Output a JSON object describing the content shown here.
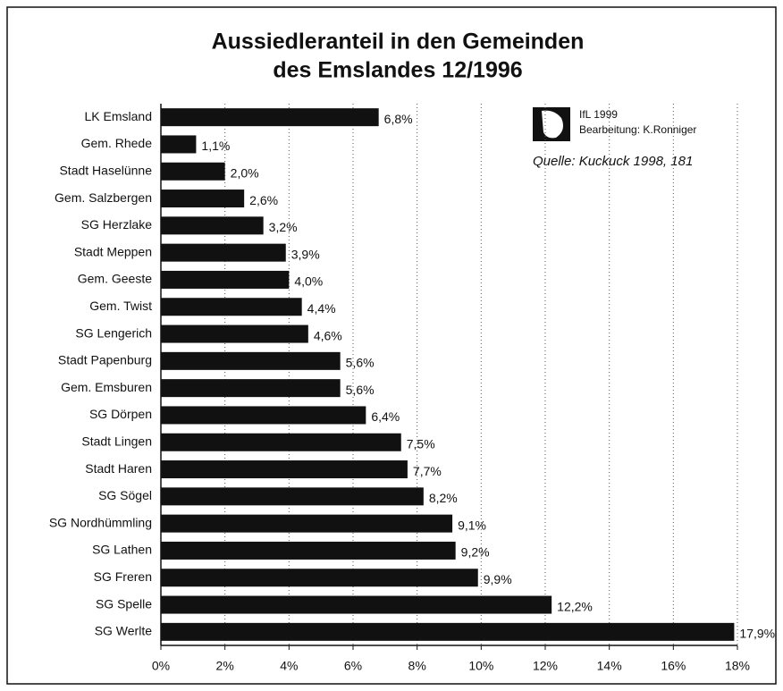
{
  "chart_data": {
    "type": "bar",
    "orientation": "horizontal",
    "title": [
      "Aussiedleranteil in den Gemeinden",
      "des Emslandes 12/1996"
    ],
    "annotations": [
      "IfL 1999",
      "Bearbeitung: K.Ronniger",
      "Quelle: Kuckuck 1998, 181"
    ],
    "categories": [
      "LK Emsland",
      "Gem. Rhede",
      "Stadt Haselünne",
      "Gem. Salzbergen",
      "SG Herzlake",
      "Stadt Meppen",
      "Gem. Geeste",
      "Gem. Twist",
      "SG Lengerich",
      "Stadt Papenburg",
      "Gem. Emsburen",
      "SG Dörpen",
      "Stadt Lingen",
      "Stadt Haren",
      "SG Sögel",
      "SG Nordhümmling",
      "SG Lathen",
      "SG Freren",
      "SG Spelle",
      "SG Werlte"
    ],
    "values": [
      6.8,
      1.1,
      2.0,
      2.6,
      3.2,
      3.9,
      4.0,
      4.4,
      4.6,
      5.6,
      5.6,
      6.4,
      7.5,
      7.7,
      8.2,
      9.1,
      9.2,
      9.9,
      12.2,
      17.9
    ],
    "value_labels": [
      "6,8%",
      "1,1%",
      "2,0%",
      "2,6%",
      "3,2%",
      "3,9%",
      "4,0%",
      "4,4%",
      "4,6%",
      "5,6%",
      "5,6%",
      "6,4%",
      "7,5%",
      "7,7%",
      "8,2%",
      "9,1%",
      "9,2%",
      "9,9%",
      "12,2%",
      "17,9%"
    ],
    "color": "#111111",
    "xlim": [
      0,
      18
    ],
    "xticks": [
      {
        "value": 0,
        "label": "0%"
      },
      {
        "value": 2,
        "label": "2%"
      },
      {
        "value": 4,
        "label": "4%"
      },
      {
        "value": 6,
        "label": "6%"
      },
      {
        "value": 8,
        "label": "8%"
      },
      {
        "value": 10,
        "label": "10%"
      },
      {
        "value": 12,
        "label": "12%"
      },
      {
        "value": 14,
        "label": "14%"
      },
      {
        "value": 16,
        "label": "16%"
      },
      {
        "value": 18,
        "label": "18%"
      }
    ],
    "grid": true
  }
}
